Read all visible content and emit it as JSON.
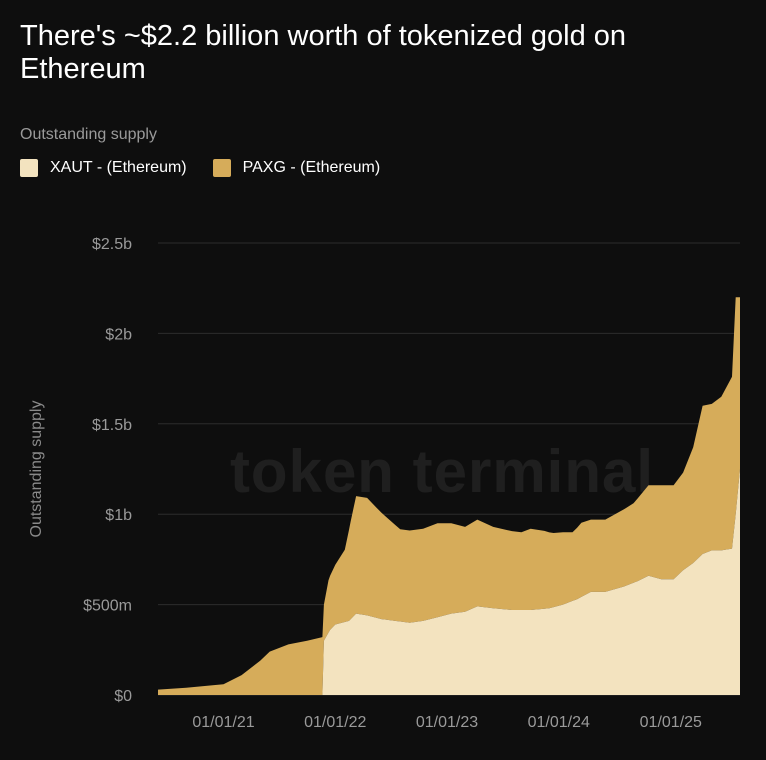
{
  "title": "There's ~$2.2 billion worth of tokenized gold on Ethereum",
  "legend_title": "Outstanding supply",
  "watermark": "token terminal",
  "colors": {
    "background": "#0e0e0e",
    "xaut": "#f3e3bf",
    "paxg": "#d6ac5a",
    "grid": "#2c2c2c"
  },
  "chart_data": {
    "type": "area",
    "stacked": true,
    "title": "There's ~$2.2 billion worth of tokenized gold on Ethereum",
    "ylabel": "Outstanding supply",
    "xlabel": "",
    "x_range": [
      "2020-06-01",
      "2025-08-15"
    ],
    "ylim": [
      0,
      2500000000
    ],
    "yticks": [
      0,
      500000000,
      1000000000,
      1500000000,
      2000000000,
      2500000000
    ],
    "ytick_labels": [
      "$0",
      "$500m",
      "$1b",
      "$1.5b",
      "$2b",
      "$2.5b"
    ],
    "xticks": [
      "2021-01-01",
      "2022-01-01",
      "2023-01-01",
      "2024-01-01",
      "2025-01-01"
    ],
    "xtick_labels": [
      "01/01/21",
      "01/01/22",
      "01/01/23",
      "01/01/24",
      "01/01/25"
    ],
    "legend_position": "top-left",
    "grid": "horizontal",
    "series": [
      {
        "name": "XAUT - (Ethereum)",
        "color": "#f3e3bf",
        "points": [
          [
            "2020-06-01",
            0
          ],
          [
            "2021-01-01",
            0
          ],
          [
            "2021-06-01",
            0
          ],
          [
            "2021-11-20",
            0
          ],
          [
            "2021-11-25",
            300000000
          ],
          [
            "2021-12-15",
            360000000
          ],
          [
            "2022-01-01",
            390000000
          ],
          [
            "2022-02-15",
            410000000
          ],
          [
            "2022-03-10",
            450000000
          ],
          [
            "2022-04-15",
            440000000
          ],
          [
            "2022-06-01",
            420000000
          ],
          [
            "2022-07-15",
            410000000
          ],
          [
            "2022-09-01",
            400000000
          ],
          [
            "2022-10-15",
            410000000
          ],
          [
            "2022-12-01",
            430000000
          ],
          [
            "2023-01-15",
            450000000
          ],
          [
            "2023-03-01",
            460000000
          ],
          [
            "2023-04-10",
            490000000
          ],
          [
            "2023-06-01",
            480000000
          ],
          [
            "2023-08-01",
            470000000
          ],
          [
            "2023-10-01",
            470000000
          ],
          [
            "2023-12-01",
            480000000
          ],
          [
            "2024-01-15",
            500000000
          ],
          [
            "2024-03-01",
            530000000
          ],
          [
            "2024-04-15",
            570000000
          ],
          [
            "2024-06-01",
            570000000
          ],
          [
            "2024-08-01",
            600000000
          ],
          [
            "2024-09-15",
            630000000
          ],
          [
            "2024-10-20",
            660000000
          ],
          [
            "2024-12-01",
            640000000
          ],
          [
            "2025-01-10",
            640000000
          ],
          [
            "2025-02-10",
            690000000
          ],
          [
            "2025-03-15",
            730000000
          ],
          [
            "2025-04-15",
            780000000
          ],
          [
            "2025-05-15",
            800000000
          ],
          [
            "2025-06-15",
            800000000
          ],
          [
            "2025-07-20",
            810000000
          ],
          [
            "2025-08-01",
            1000000000
          ],
          [
            "2025-08-15",
            1250000000
          ]
        ]
      },
      {
        "name": "PAXG - (Ethereum)",
        "color": "#d6ac5a",
        "points": [
          [
            "2020-06-01",
            30000000
          ],
          [
            "2020-09-01",
            40000000
          ],
          [
            "2020-12-01",
            55000000
          ],
          [
            "2021-01-01",
            60000000
          ],
          [
            "2021-03-01",
            110000000
          ],
          [
            "2021-05-01",
            190000000
          ],
          [
            "2021-06-01",
            240000000
          ],
          [
            "2021-08-01",
            280000000
          ],
          [
            "2021-10-01",
            300000000
          ],
          [
            "2021-11-20",
            320000000
          ],
          [
            "2021-11-25",
            200000000
          ],
          [
            "2021-12-10",
            290000000
          ],
          [
            "2022-01-01",
            330000000
          ],
          [
            "2022-02-01",
            400000000
          ],
          [
            "2022-02-20",
            540000000
          ],
          [
            "2022-03-10",
            650000000
          ],
          [
            "2022-04-15",
            650000000
          ],
          [
            "2022-05-15",
            610000000
          ],
          [
            "2022-06-15",
            570000000
          ],
          [
            "2022-08-01",
            510000000
          ],
          [
            "2022-09-01",
            510000000
          ],
          [
            "2022-10-15",
            510000000
          ],
          [
            "2022-12-01",
            520000000
          ],
          [
            "2023-01-15",
            500000000
          ],
          [
            "2023-03-01",
            470000000
          ],
          [
            "2023-04-10",
            480000000
          ],
          [
            "2023-06-01",
            450000000
          ],
          [
            "2023-07-15",
            440000000
          ],
          [
            "2023-09-01",
            430000000
          ],
          [
            "2023-10-01",
            450000000
          ],
          [
            "2023-11-15",
            430000000
          ],
          [
            "2023-12-15",
            410000000
          ],
          [
            "2024-01-15",
            400000000
          ],
          [
            "2024-02-15",
            380000000
          ],
          [
            "2024-03-15",
            410000000
          ],
          [
            "2024-04-15",
            400000000
          ],
          [
            "2024-06-01",
            400000000
          ],
          [
            "2024-07-15",
            420000000
          ],
          [
            "2024-09-01",
            440000000
          ],
          [
            "2024-10-20",
            500000000
          ],
          [
            "2024-12-01",
            520000000
          ],
          [
            "2025-01-10",
            520000000
          ],
          [
            "2025-02-10",
            540000000
          ],
          [
            "2025-03-15",
            640000000
          ],
          [
            "2025-04-15",
            820000000
          ],
          [
            "2025-05-15",
            810000000
          ],
          [
            "2025-06-15",
            850000000
          ],
          [
            "2025-07-20",
            950000000
          ],
          [
            "2025-08-01",
            1200000000
          ],
          [
            "2025-08-15",
            950000000
          ]
        ]
      }
    ]
  }
}
